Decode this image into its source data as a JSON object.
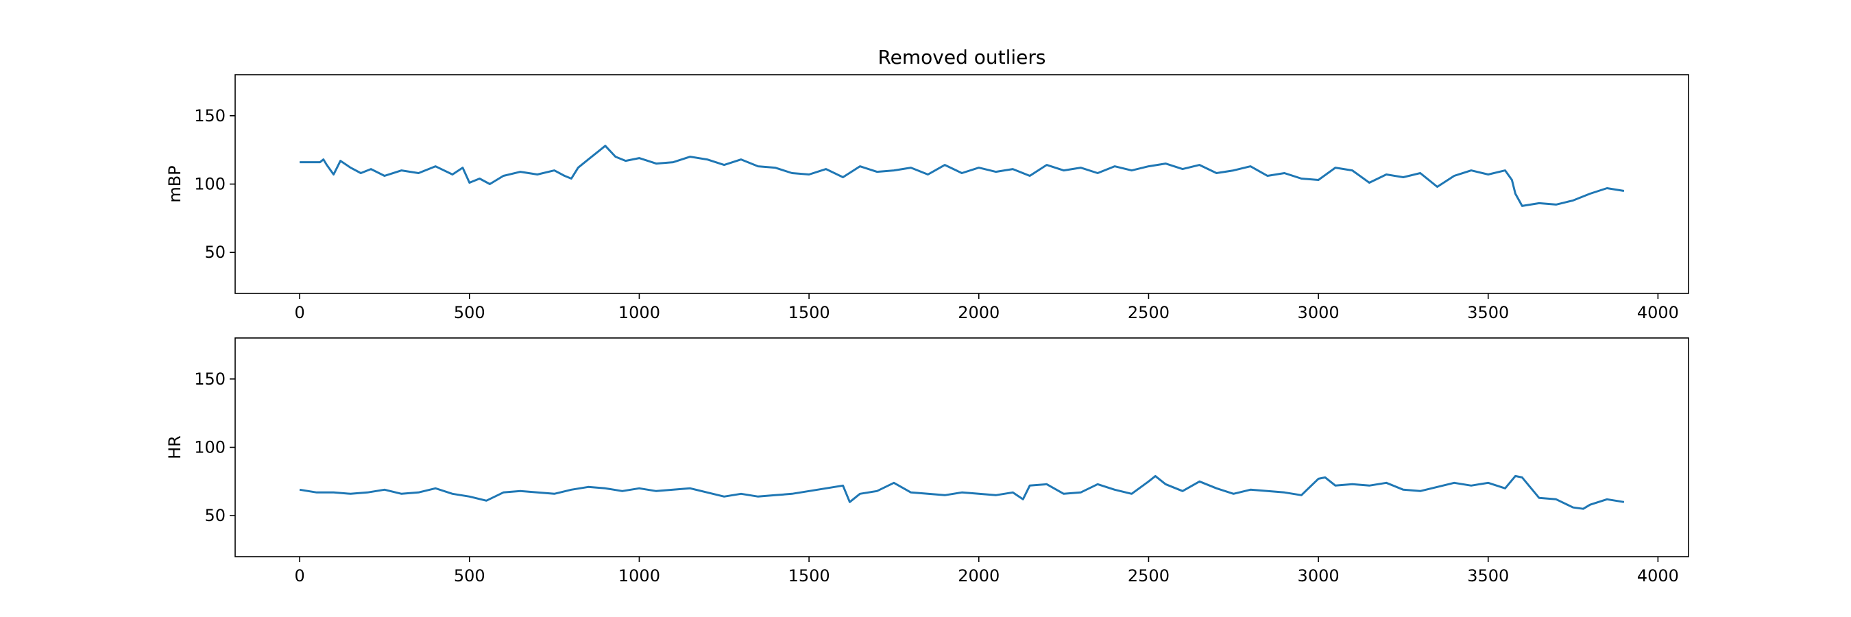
{
  "figure": {
    "title": "Removed outliers"
  },
  "chart_data": [
    {
      "type": "line",
      "title": "Removed outliers",
      "xlabel": "",
      "ylabel": "mBP",
      "xlim": [
        -190,
        4090
      ],
      "ylim": [
        20,
        180
      ],
      "xticks": [
        0,
        500,
        1000,
        1500,
        2000,
        2500,
        3000,
        3500,
        4000
      ],
      "yticks": [
        50,
        100,
        150
      ],
      "grid": false,
      "color": "#1f77b4",
      "series": [
        {
          "x": [
            0,
            60,
            70,
            80,
            100,
            120,
            150,
            180,
            210,
            250,
            300,
            350,
            400,
            450,
            480,
            500,
            530,
            560,
            600,
            650,
            700,
            750,
            780,
            800,
            820,
            850,
            880,
            900,
            930,
            960,
            1000,
            1050,
            1100,
            1150,
            1200,
            1250,
            1300,
            1350,
            1400,
            1450,
            1500,
            1550,
            1600,
            1650,
            1700,
            1750,
            1800,
            1850,
            1900,
            1950,
            2000,
            2050,
            2100,
            2150,
            2200,
            2250,
            2300,
            2350,
            2400,
            2450,
            2500,
            2550,
            2600,
            2650,
            2700,
            2750,
            2800,
            2850,
            2900,
            2950,
            3000,
            3050,
            3100,
            3150,
            3200,
            3250,
            3300,
            3350,
            3400,
            3450,
            3500,
            3550,
            3570,
            3580,
            3600,
            3650,
            3700,
            3750,
            3800,
            3850,
            3900
          ],
          "y": [
            116,
            116,
            118,
            114,
            107,
            117,
            112,
            108,
            111,
            106,
            110,
            108,
            113,
            107,
            112,
            101,
            104,
            100,
            106,
            109,
            107,
            110,
            106,
            104,
            112,
            118,
            124,
            128,
            120,
            117,
            119,
            115,
            116,
            120,
            118,
            114,
            118,
            113,
            112,
            108,
            107,
            111,
            105,
            113,
            109,
            110,
            112,
            107,
            114,
            108,
            112,
            109,
            111,
            106,
            114,
            110,
            112,
            108,
            113,
            110,
            113,
            115,
            111,
            114,
            108,
            110,
            113,
            106,
            108,
            104,
            103,
            112,
            110,
            101,
            107,
            105,
            108,
            98,
            106,
            110,
            107,
            110,
            103,
            93,
            84,
            86,
            85,
            88,
            93,
            97,
            95
          ]
        }
      ]
    },
    {
      "type": "line",
      "title": "",
      "xlabel": "",
      "ylabel": "HR",
      "xlim": [
        -190,
        4090
      ],
      "ylim": [
        20,
        180
      ],
      "xticks": [
        0,
        500,
        1000,
        1500,
        2000,
        2500,
        3000,
        3500,
        4000
      ],
      "yticks": [
        50,
        100,
        150
      ],
      "grid": false,
      "color": "#1f77b4",
      "series": [
        {
          "x": [
            0,
            50,
            100,
            150,
            200,
            250,
            300,
            350,
            400,
            450,
            500,
            550,
            600,
            650,
            700,
            750,
            800,
            850,
            900,
            950,
            1000,
            1050,
            1100,
            1150,
            1200,
            1250,
            1300,
            1350,
            1400,
            1450,
            1500,
            1550,
            1600,
            1620,
            1650,
            1700,
            1750,
            1800,
            1850,
            1900,
            1950,
            2000,
            2050,
            2100,
            2130,
            2150,
            2200,
            2250,
            2300,
            2350,
            2400,
            2450,
            2500,
            2520,
            2550,
            2600,
            2650,
            2700,
            2750,
            2800,
            2850,
            2900,
            2950,
            3000,
            3020,
            3050,
            3100,
            3150,
            3200,
            3250,
            3300,
            3350,
            3400,
            3450,
            3500,
            3550,
            3580,
            3600,
            3650,
            3700,
            3750,
            3780,
            3800,
            3850,
            3900
          ],
          "y": [
            69,
            67,
            67,
            66,
            67,
            69,
            66,
            67,
            70,
            66,
            64,
            61,
            67,
            68,
            67,
            66,
            69,
            71,
            70,
            68,
            70,
            68,
            69,
            70,
            67,
            64,
            66,
            64,
            65,
            66,
            68,
            70,
            72,
            60,
            66,
            68,
            74,
            67,
            66,
            65,
            67,
            66,
            65,
            67,
            62,
            72,
            73,
            66,
            67,
            73,
            69,
            66,
            75,
            79,
            73,
            68,
            75,
            70,
            66,
            69,
            68,
            67,
            65,
            77,
            78,
            72,
            73,
            72,
            74,
            69,
            68,
            71,
            74,
            72,
            74,
            70,
            79,
            78,
            63,
            62,
            56,
            55,
            58,
            62,
            60
          ]
        }
      ]
    }
  ]
}
